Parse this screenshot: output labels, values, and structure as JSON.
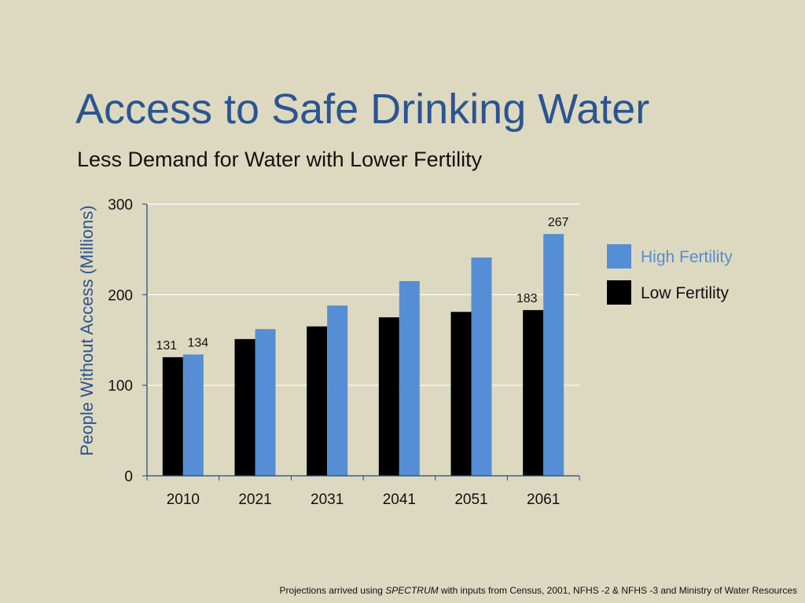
{
  "slide": {
    "title": "Access to Safe Drinking Water",
    "subtitle": "Less Demand for Water with Lower Fertility"
  },
  "footnote": {
    "prefix": "Projections arrived using ",
    "emphasis": "SPECTRUM",
    "suffix": " with inputs from Census, 2001, NFHS -2 & NFHS -3 and Ministry of Water Resources"
  },
  "colors": {
    "background": "#ddd8c0",
    "title": "#2b5590",
    "high_fertility": "#558ed5",
    "low_fertility": "#000000",
    "gridline": "#ffffff",
    "axis": "#1f497d"
  },
  "chart_data": {
    "type": "bar",
    "title": "",
    "xlabel": "",
    "ylabel": "People Without Access (Millions)",
    "ylim": [
      0,
      300
    ],
    "yticks": [
      0,
      100,
      200,
      300
    ],
    "grid": true,
    "legend_position": "right",
    "categories": [
      "2010",
      "2021",
      "2031",
      "2041",
      "2051",
      "2061"
    ],
    "series": [
      {
        "name": "Low Fertility",
        "color": "#000000",
        "values": [
          131,
          151,
          165,
          175,
          181,
          183
        ],
        "data_labels": [
          "131",
          "",
          "",
          "",
          "",
          "183"
        ]
      },
      {
        "name": "High Fertility",
        "color": "#558ed5",
        "values": [
          134,
          162,
          188,
          215,
          241,
          267
        ],
        "data_labels": [
          "134",
          "",
          "",
          "",
          "",
          "267"
        ]
      }
    ],
    "legend_order": [
      "High Fertility",
      "Low Fertility"
    ]
  }
}
